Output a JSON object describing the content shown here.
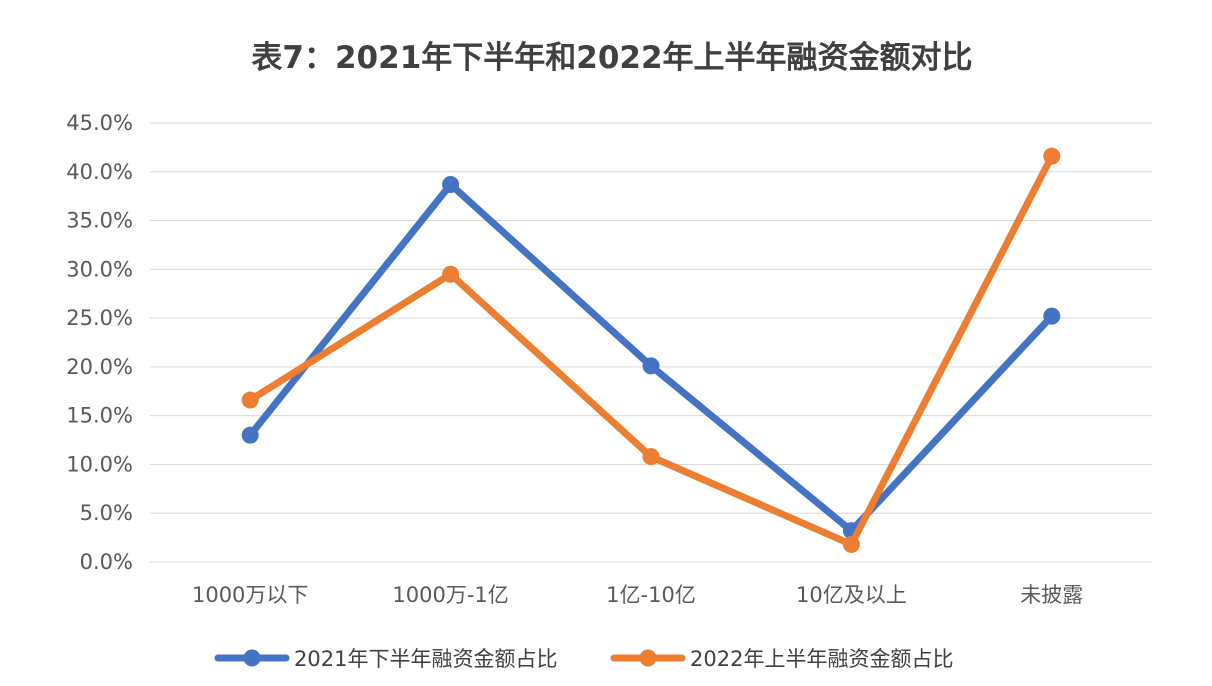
{
  "chart_data": {
    "type": "line",
    "title": "表7：2021年下半年和2022年上半年融资金额对比",
    "xlabel": "",
    "ylabel": "",
    "categories": [
      "1000万以下",
      "1000万-1亿",
      "1亿-10亿",
      "10亿及以上",
      "未披露"
    ],
    "ylim": [
      0,
      45
    ],
    "yticks": [
      "0.0%",
      "5.0%",
      "10.0%",
      "15.0%",
      "20.0%",
      "25.0%",
      "30.0%",
      "35.0%",
      "40.0%",
      "45.0%"
    ],
    "grid": true,
    "legend_position": "bottom",
    "series": [
      {
        "name": "2021年下半年融资金额占比",
        "color": "#4472C4",
        "values": [
          13.0,
          38.7,
          20.1,
          3.2,
          25.2
        ]
      },
      {
        "name": "2022年上半年融资金额占比",
        "color": "#ED7D31",
        "values": [
          16.6,
          29.5,
          10.8,
          1.8,
          41.6
        ]
      }
    ]
  }
}
